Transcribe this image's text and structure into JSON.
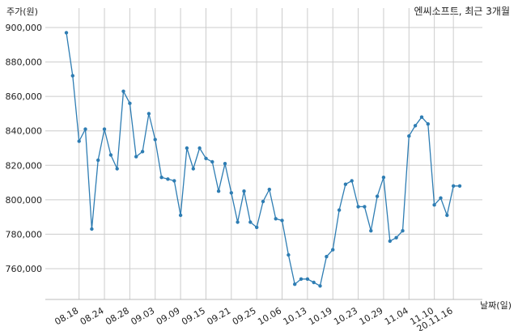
{
  "chart_data": {
    "type": "line",
    "title": "엔씨소프트, 최근 3개월",
    "ylabel": "주가(원)",
    "xlabel": "날짜(일)",
    "ylim": [
      740000,
      905000
    ],
    "yticks": [
      760000,
      780000,
      800000,
      820000,
      840000,
      860000,
      880000,
      900000
    ],
    "ytick_labels": [
      "760,000",
      "780,000",
      "800,000",
      "820,000",
      "840,000",
      "860,000",
      "880,000",
      "900,000"
    ],
    "xticks": [
      {
        "index": 2,
        "label": "08.18"
      },
      {
        "index": 6,
        "label": "08.24"
      },
      {
        "index": 10,
        "label": "08.28"
      },
      {
        "index": 14,
        "label": "09.03"
      },
      {
        "index": 18,
        "label": "09.09"
      },
      {
        "index": 22,
        "label": "09.15"
      },
      {
        "index": 26,
        "label": "09.21"
      },
      {
        "index": 30,
        "label": "09.25"
      },
      {
        "index": 34,
        "label": "10.06"
      },
      {
        "index": 38,
        "label": "10.13"
      },
      {
        "index": 42,
        "label": "10.19"
      },
      {
        "index": 46,
        "label": "10.23"
      },
      {
        "index": 50,
        "label": "10.29"
      },
      {
        "index": 54,
        "label": "11.04"
      },
      {
        "index": 58,
        "label": "11.10"
      },
      {
        "index": 61,
        "label": "20.11.16"
      }
    ],
    "grid": true,
    "line_color": "#2e7db3",
    "series": [
      {
        "values": [
          897000,
          872000,
          834000,
          841000,
          783000,
          823000,
          841000,
          826000,
          818000,
          863000,
          856000,
          825000,
          828000,
          850000,
          835000,
          813000,
          812000,
          811000,
          791000,
          830000,
          818000,
          830000,
          824000,
          822000,
          805000,
          821000,
          804000,
          787000,
          805000,
          787000,
          784000,
          799000,
          806000,
          789000,
          788000,
          768000,
          751000,
          754000,
          754000,
          752000,
          750000,
          767000,
          771000,
          794000,
          809000,
          811000,
          796000,
          796000,
          782000,
          802000,
          813000,
          776000,
          778000,
          782000,
          837000,
          843000,
          848000,
          844000,
          797000,
          801000,
          791000,
          808000,
          808000
        ]
      }
    ]
  }
}
